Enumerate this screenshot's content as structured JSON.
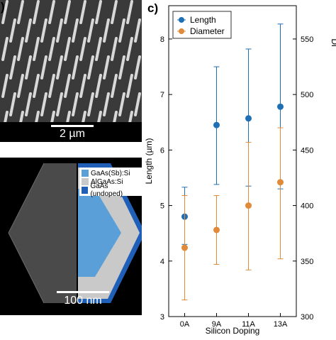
{
  "panel_a": {
    "letter": ")",
    "scale_label": "2 µm"
  },
  "panel_b": {
    "letter": ")",
    "scale_label": "100 nm",
    "legend": [
      {
        "label": "GaAs(Sb):Si",
        "color": "#5a9fd8"
      },
      {
        "label": "AlGaAs:Si",
        "color": "#c9c9c9"
      },
      {
        "label": "GaAs (undoped)",
        "color": "#1f5fb8"
      }
    ]
  },
  "panel_c": {
    "letter": "c)"
  },
  "chart_data": {
    "type": "scatter",
    "categories": [
      "0A",
      "9A",
      "11A",
      "13A"
    ],
    "xlabel": "Silicon Doping",
    "ylabel": "Length (µm)",
    "y2label": "Di",
    "ylim": [
      3,
      8.6
    ],
    "yticks": [
      3,
      4,
      5,
      6,
      7,
      8
    ],
    "y2lim": [
      300,
      580
    ],
    "y2ticks": [
      300,
      350,
      400,
      450,
      500,
      550
    ],
    "legend_position": "top-left",
    "series": [
      {
        "name": "Length",
        "axis": "left",
        "color": "#1f6fb5",
        "values": [
          4.8,
          6.45,
          6.57,
          6.78
        ],
        "err_low": [
          4.3,
          5.38,
          5.35,
          5.3
        ],
        "err_high": [
          5.33,
          7.5,
          7.82,
          8.27
        ]
      },
      {
        "name": "Diameter",
        "axis": "right",
        "color": "#e08a3a",
        "values": [
          362,
          378,
          400,
          421
        ],
        "err_low": [
          315,
          347,
          342,
          352
        ],
        "err_high": [
          409,
          409,
          457,
          470
        ]
      }
    ]
  }
}
